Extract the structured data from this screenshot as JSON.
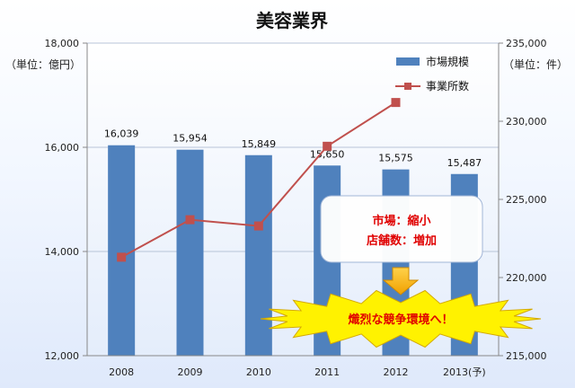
{
  "chart_data": {
    "type": "bar+line",
    "title": "美容業界",
    "categories": [
      "2008",
      "2009",
      "2010",
      "2011",
      "2012",
      "2013(予)"
    ],
    "left_axis": {
      "unit": "（単位：億円）",
      "ylim": [
        12000,
        18000
      ],
      "ticks": [
        "12,000",
        "14,000",
        "16,000",
        "18,000"
      ]
    },
    "right_axis": {
      "unit": "（単位：件）",
      "ylim": [
        215000,
        235000
      ],
      "ticks": [
        "215,000",
        "220,000",
        "225,000",
        "230,000",
        "235,000"
      ]
    },
    "series": [
      {
        "name": "市場規模",
        "type": "bar",
        "axis": "left",
        "color": "#4f81bd",
        "values": [
          16039,
          15954,
          15849,
          15650,
          15575,
          15487
        ],
        "labels": [
          "16,039",
          "15,954",
          "15,849",
          "15,650",
          "15,575",
          "15,487"
        ]
      },
      {
        "name": "事業所数",
        "type": "line",
        "axis": "right",
        "color": "#c0504d",
        "values": [
          221300,
          223700,
          223300,
          228400,
          231200,
          null
        ]
      }
    ],
    "legend_position": "top-right",
    "grid": true
  },
  "annotations": {
    "callout_line1": "市場：縮小",
    "callout_line2": "店舗数：増加",
    "burst_text": "熾烈な競争環境へ！"
  }
}
